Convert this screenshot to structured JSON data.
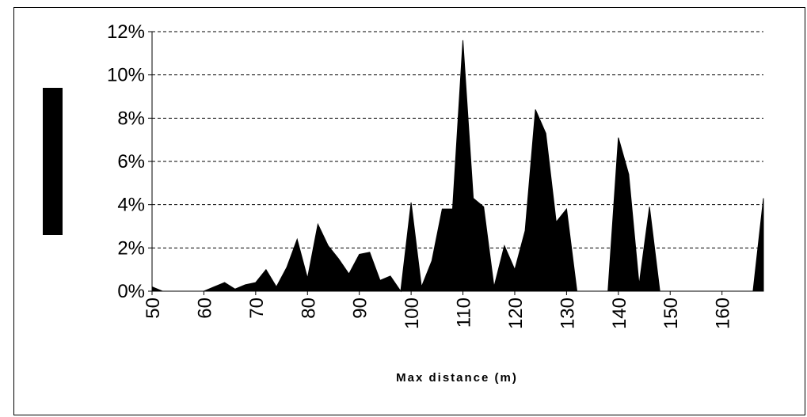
{
  "chart_data": {
    "type": "area",
    "xlabel": "Max distance (m)",
    "ylabel": "",
    "xlim": [
      50,
      168
    ],
    "ylim": [
      0,
      12
    ],
    "y_ticks": [
      "0%",
      "2%",
      "4%",
      "6%",
      "8%",
      "10%",
      "12%"
    ],
    "x_ticks": [
      "50",
      "60",
      "70",
      "80",
      "90",
      "100",
      "110",
      "120",
      "130",
      "140",
      "150",
      "160"
    ],
    "grid": "horizontal-dashed",
    "fill_color": "#000000",
    "series": [
      {
        "x": [
          50,
          52,
          54,
          56,
          58,
          60,
          62,
          64,
          66,
          68,
          70,
          72,
          74,
          76,
          78,
          80,
          82,
          84,
          86,
          88,
          90,
          92,
          94,
          96,
          98,
          100,
          102,
          104,
          106,
          108,
          110,
          112,
          114,
          116,
          118,
          120,
          122,
          124,
          126,
          128,
          130,
          132,
          134,
          136,
          138,
          140,
          142,
          144,
          146,
          148,
          150,
          152,
          154,
          156,
          158,
          160,
          162,
          164,
          166,
          168
        ],
        "values": [
          0.2,
          0,
          0,
          0,
          0,
          0,
          0.2,
          0.4,
          0.1,
          0.3,
          0.4,
          1.0,
          0.2,
          1.1,
          2.4,
          0.6,
          3.1,
          2.1,
          1.5,
          0.8,
          1.7,
          1.8,
          0.5,
          0.7,
          0,
          4.1,
          0.2,
          1.4,
          3.8,
          3.8,
          11.6,
          4.3,
          3.9,
          0.2,
          2.1,
          1.0,
          2.8,
          8.4,
          7.3,
          3.2,
          3.8,
          0,
          0,
          0,
          0,
          7.1,
          5.4,
          0.3,
          3.9,
          0,
          0,
          0,
          0,
          0,
          0,
          0,
          0,
          0,
          0,
          4.3
        ]
      }
    ]
  }
}
